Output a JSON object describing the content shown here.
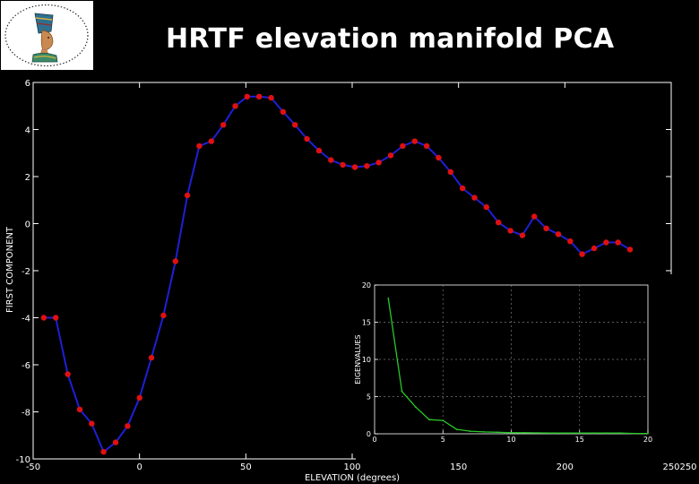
{
  "slide": {
    "title": "HRTF elevation manifold PCA"
  },
  "colors": {
    "background": "#000000",
    "axis": "#ffffff",
    "main_line": "#1f1fd6",
    "main_marker": "#e01010",
    "inset_line": "#28c828",
    "grid": "#7a7a7a"
  },
  "icons": {
    "logo": "nefertiti-bust-logo"
  },
  "chart_data": [
    {
      "type": "line",
      "xlabel": "ELEVATION (degrees)",
      "ylabel": "FIRST COMPONENT",
      "xlim": [
        -50,
        250
      ],
      "ylim": [
        -10,
        6
      ],
      "xticks": [
        -50,
        0,
        50,
        100,
        150,
        200,
        250
      ],
      "yticks": [
        -10,
        -8,
        -6,
        -4,
        -2,
        0,
        2,
        4,
        6
      ],
      "grid": false,
      "markers": true,
      "series": [
        {
          "x": [
            -45,
            -39.4,
            -33.75,
            -28.1,
            -22.5,
            -16.9,
            -11.25,
            -5.6,
            0,
            5.6,
            11.25,
            16.9,
            22.5,
            28.1,
            33.75,
            39.4,
            45,
            50.6,
            56.25,
            61.9,
            67.5,
            73.1,
            78.75,
            84.4,
            90,
            95.6,
            101.25,
            106.9,
            112.5,
            118.1,
            123.75,
            129.4,
            135,
            140.6,
            146.25,
            151.9,
            157.5,
            163.1,
            168.75,
            174.4,
            180,
            185.6,
            191.25,
            196.9,
            202.5,
            208.1,
            213.75,
            219.4,
            225,
            230.6
          ],
          "y": [
            -4.0,
            -4.0,
            -6.4,
            -7.9,
            -8.5,
            -9.7,
            -9.3,
            -8.6,
            -7.4,
            -5.7,
            -3.9,
            -1.6,
            1.2,
            3.3,
            3.5,
            4.2,
            5.0,
            5.4,
            5.4,
            5.35,
            4.75,
            4.2,
            3.6,
            3.1,
            2.7,
            2.5,
            2.4,
            2.45,
            2.6,
            2.9,
            3.3,
            3.5,
            3.3,
            2.8,
            2.2,
            1.5,
            1.1,
            0.7,
            0.05,
            -0.3,
            -0.5,
            0.3,
            -0.2,
            -0.45,
            -0.75,
            -1.3,
            -1.05,
            -0.8,
            -0.8,
            -1.1
          ]
        }
      ]
    },
    {
      "type": "line",
      "xlabel": "",
      "ylabel": "EIGENVALUES",
      "xlim": [
        0,
        20
      ],
      "ylim": [
        0,
        20
      ],
      "xticks": [
        0,
        5,
        10,
        15,
        20
      ],
      "yticks": [
        0,
        5,
        10,
        15,
        20
      ],
      "grid": true,
      "markers": false,
      "series": [
        {
          "x": [
            1,
            2,
            3,
            4,
            5,
            6,
            7,
            8,
            9,
            10,
            11,
            12,
            13,
            14,
            15,
            16,
            17,
            18,
            19,
            20
          ],
          "y": [
            18.2,
            5.7,
            3.6,
            1.9,
            1.8,
            0.6,
            0.35,
            0.25,
            0.2,
            0.15,
            0.15,
            0.12,
            0.1,
            0.1,
            0.1,
            0.1,
            0.1,
            0.1,
            0.05,
            0.05
          ]
        }
      ]
    }
  ],
  "extra_ticks": {
    "bottom_right_x": "250"
  }
}
